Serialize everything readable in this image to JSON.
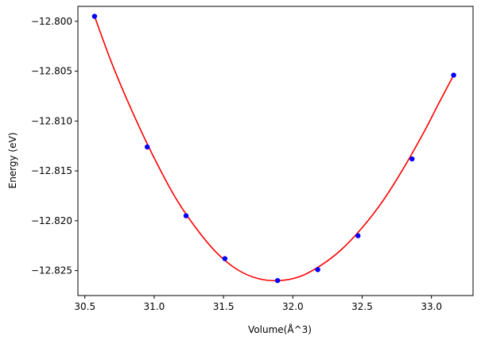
{
  "chart_data": {
    "type": "scatter",
    "title": "",
    "xlabel": "Volume(Å^3)",
    "ylabel": "Energy (eV)",
    "xlim": [
      30.45,
      33.3
    ],
    "ylim": [
      -12.8275,
      -12.7985
    ],
    "xticks": [
      30.5,
      31.0,
      31.5,
      32.0,
      32.5,
      33.0
    ],
    "xtick_labels": [
      "30.5",
      "31.0",
      "31.5",
      "32.0",
      "32.5",
      "33.0"
    ],
    "yticks": [
      -12.8,
      -12.805,
      -12.81,
      -12.815,
      -12.82,
      -12.825
    ],
    "ytick_labels": [
      "−12.800",
      "−12.805",
      "−12.810",
      "−12.815",
      "−12.820",
      "−12.825"
    ],
    "grid": false,
    "series": [
      {
        "kind": "points",
        "color": "#0000ff",
        "x": [
          30.57,
          30.95,
          31.23,
          31.51,
          31.89,
          32.18,
          32.47,
          32.86,
          33.16
        ],
        "y": [
          -12.7995,
          -12.8126,
          -12.8195,
          -12.8238,
          -12.826,
          -12.8249,
          -12.8215,
          -12.8138,
          -12.8054
        ]
      },
      {
        "kind": "fit-curve",
        "color": "#ff0000",
        "x": [
          30.57,
          30.7,
          30.85,
          31.0,
          31.15,
          31.3,
          31.45,
          31.6,
          31.75,
          31.9,
          32.05,
          32.2,
          32.35,
          32.5,
          32.65,
          32.8,
          32.95,
          33.05,
          33.16
        ],
        "y": [
          -12.7995,
          -12.8044,
          -12.8093,
          -12.8137,
          -12.8176,
          -12.8207,
          -12.8232,
          -12.8249,
          -12.8258,
          -12.826,
          -12.8256,
          -12.8245,
          -12.8229,
          -12.8207,
          -12.818,
          -12.8147,
          -12.811,
          -12.8083,
          -12.8054
        ]
      }
    ]
  }
}
